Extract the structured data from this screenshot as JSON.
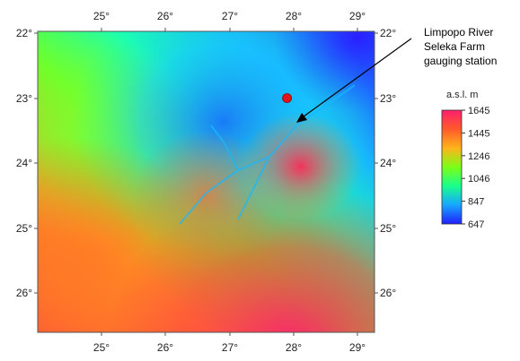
{
  "map": {
    "longitude_ticks": [
      "25°",
      "26°",
      "27°",
      "28°",
      "29°"
    ],
    "latitude_ticks": [
      "22°",
      "23°",
      "24°",
      "25°",
      "26°"
    ],
    "marker": {
      "lon": 27.9,
      "lat": 23.0,
      "color": "#e0141c"
    },
    "annotation": {
      "lines": [
        "Limpopo River",
        "Seleka Farm",
        "gauging station"
      ]
    }
  },
  "colorbar": {
    "title": "a.s.l. m",
    "ticks": [
      "1645",
      "1445",
      "1246",
      "1046",
      "847",
      "647"
    ],
    "min": 647,
    "max": 1645,
    "colors": [
      "#1f1fff",
      "#17a6ff",
      "#18ff8c",
      "#7cff16",
      "#ffb31a",
      "#ff5a2a",
      "#ff1f6e"
    ]
  }
}
